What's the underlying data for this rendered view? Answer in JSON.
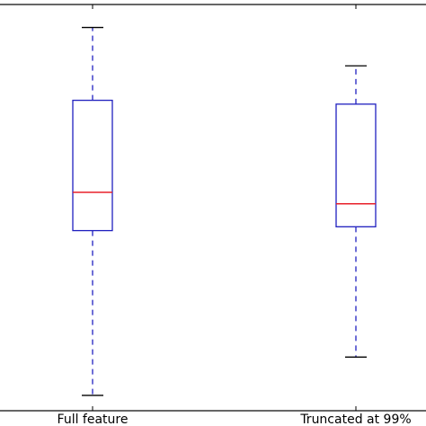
{
  "chart_data": {
    "type": "box",
    "categories": [
      "Full feature",
      "Truncated at 99%"
    ],
    "boxes": [
      {
        "name": "Full feature",
        "whisker_low": 0.04,
        "q1": 0.47,
        "median": 0.57,
        "q3": 0.81,
        "whisker_high": 1.0
      },
      {
        "name": "Truncated at 99%",
        "whisker_low": 0.14,
        "q1": 0.48,
        "median": 0.54,
        "q3": 0.8,
        "whisker_high": 0.9
      }
    ],
    "ylim": [
      0.0,
      1.06
    ],
    "title": "",
    "xlabel": "",
    "ylabel": "",
    "grid": false,
    "colors": {
      "box": "#1f1fbf",
      "whisker": "#1f1fbf",
      "cap": "#000000",
      "median": "#e8202a",
      "axes": "#000000"
    }
  }
}
